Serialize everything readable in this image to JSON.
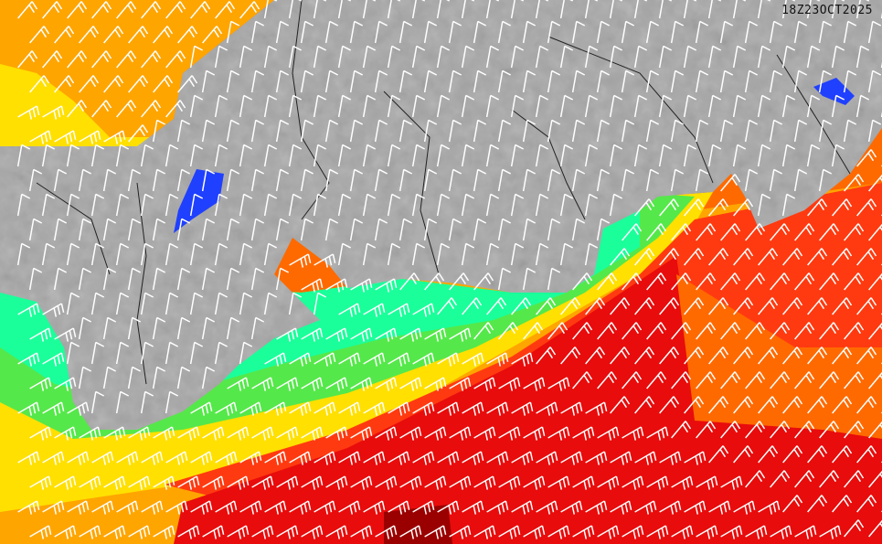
{
  "map": {
    "timestamp": "18Z23OCT2025",
    "colors": {
      "land": "#a6a6a6",
      "lake": "#2040ff",
      "calm_sea": "#1aff9a",
      "light_green": "#55e84a",
      "green_yellow": "#b8f030",
      "yellow": "#ffe000",
      "orange": "#ffa500",
      "dark_orange": "#ff6a00",
      "red_orange": "#ff3a10",
      "red": "#e80c0c",
      "dark_red": "#9a0000",
      "barb": "#ffffff",
      "boundary": "#222222"
    },
    "layers": [
      "shaded-relief-land",
      "wind-speed-fill",
      "wind-barbs",
      "prefecture-boundaries"
    ]
  }
}
